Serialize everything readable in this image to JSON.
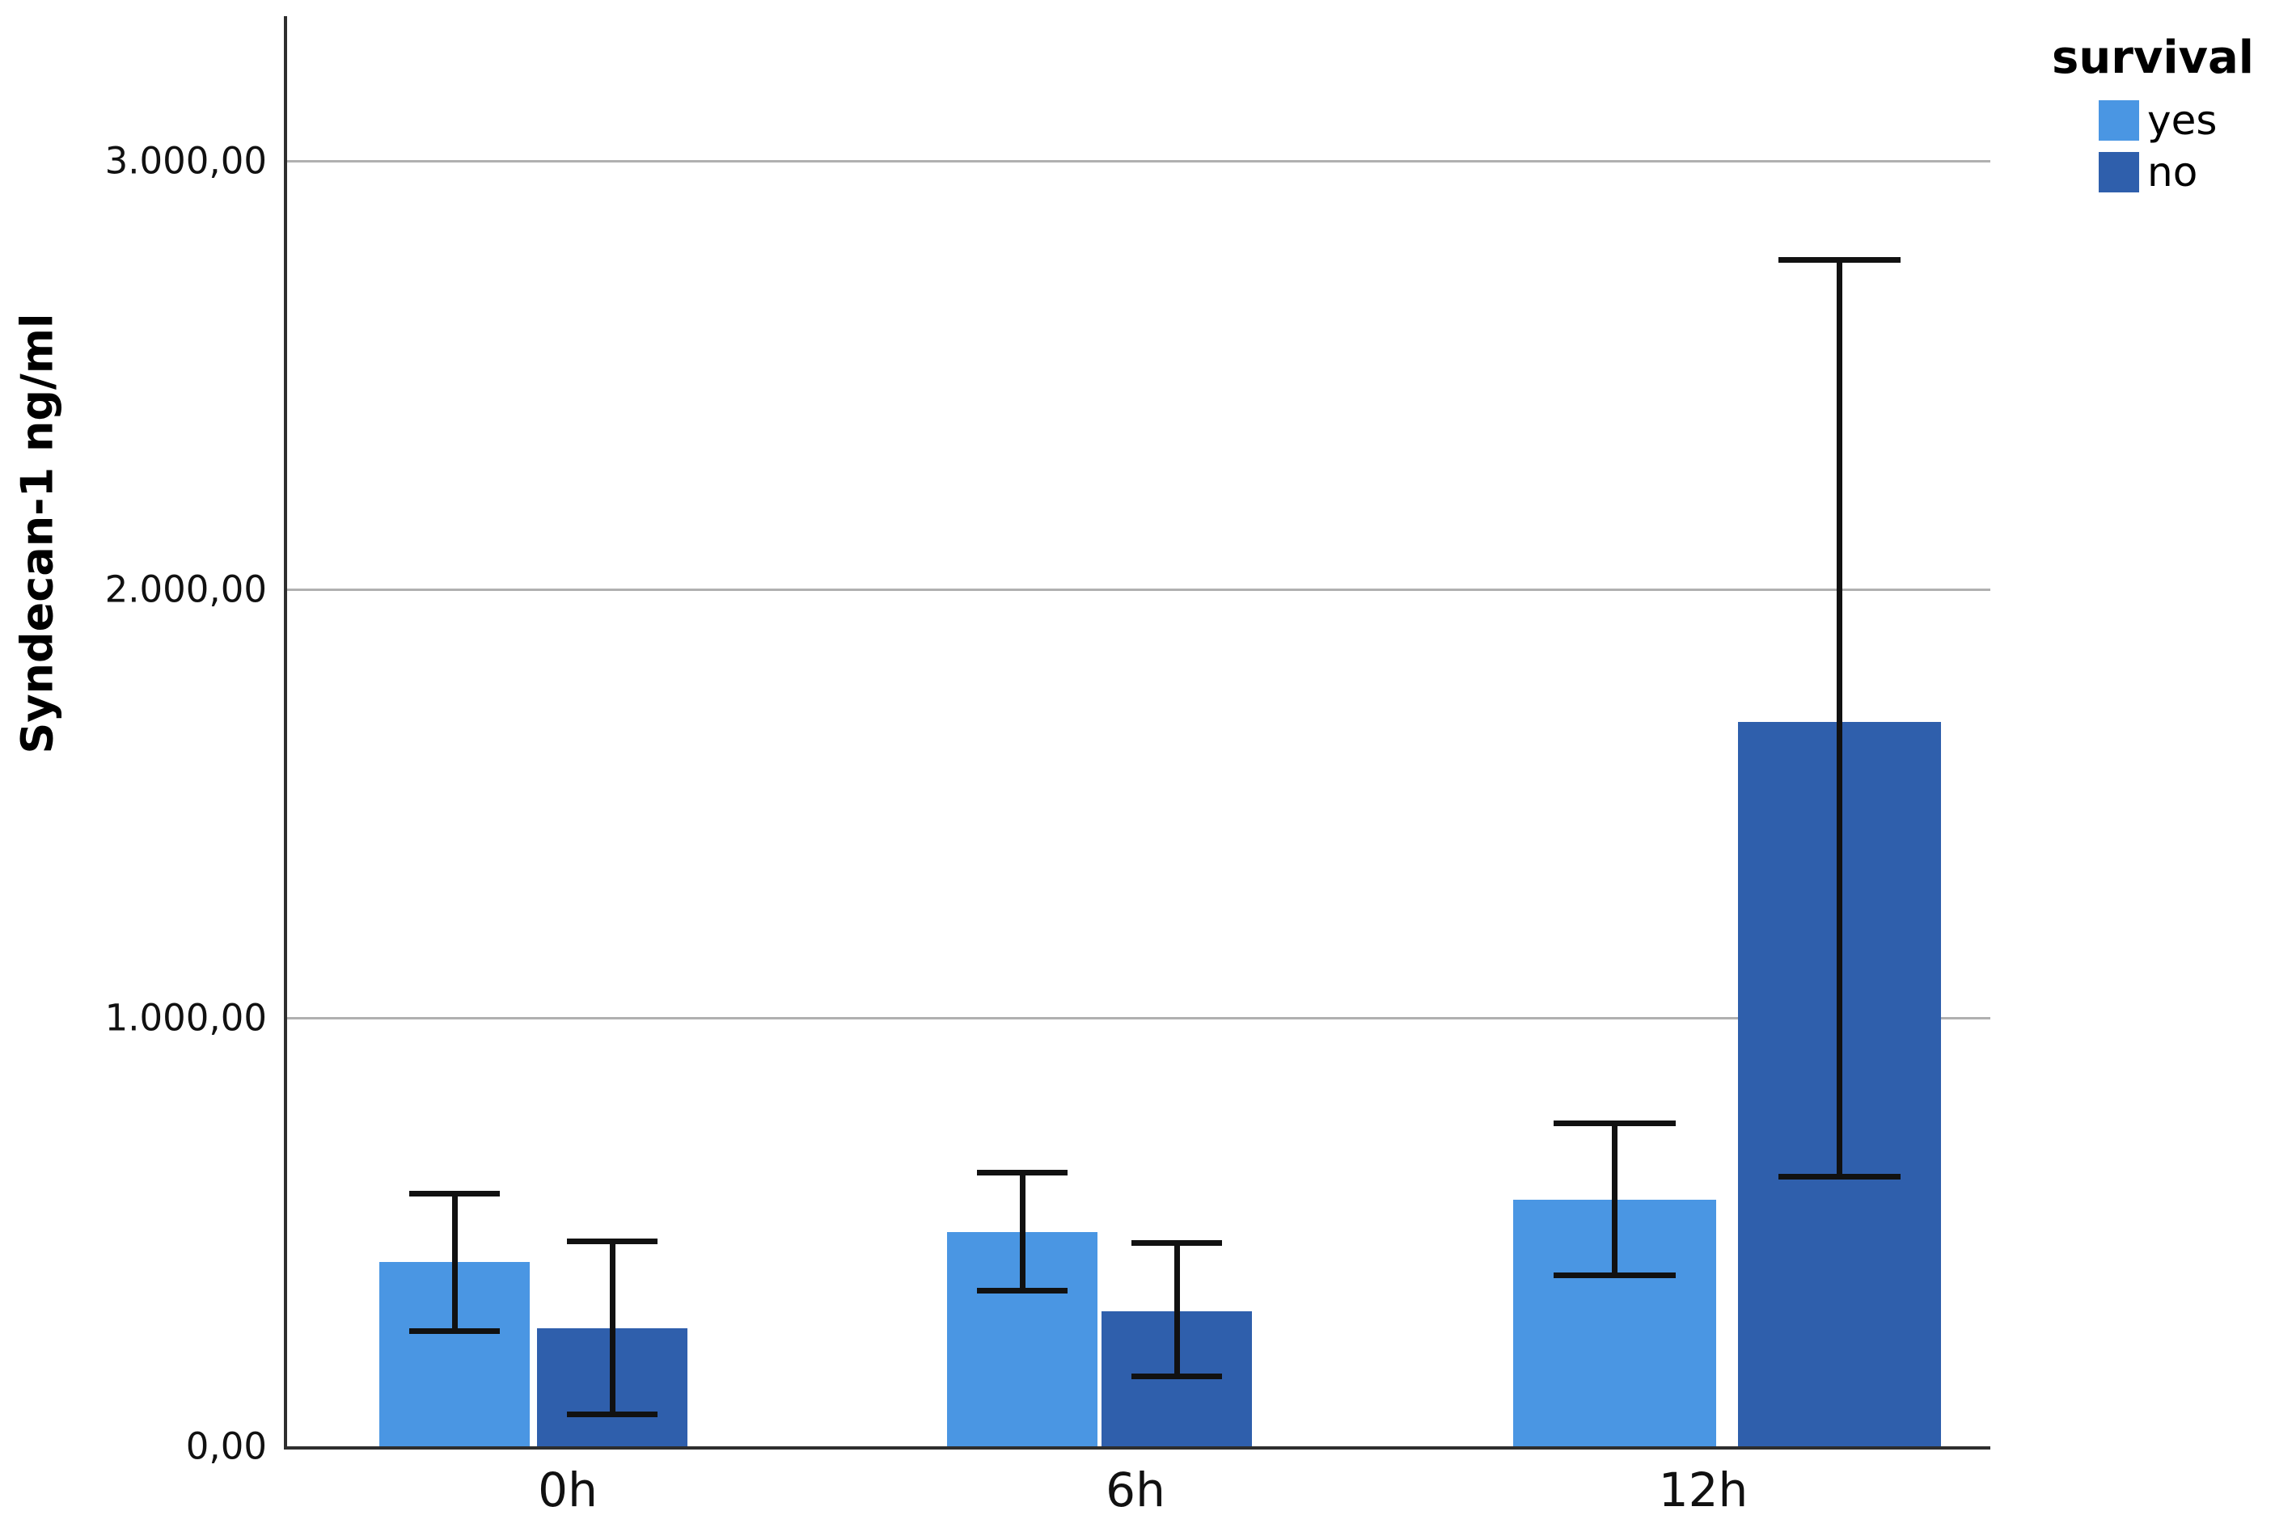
{
  "y_axis": {
    "title": "Syndecan-1 ng/ml",
    "tick_labels": [
      "0,00",
      "1.000,00",
      "2.000,00",
      "3.000,00"
    ],
    "tick_values": [
      0,
      1000,
      2000,
      3000
    ]
  },
  "x_axis": {
    "categories": [
      "0h",
      "6h",
      "12h"
    ]
  },
  "legend": {
    "title": "survival",
    "items": [
      {
        "label": "yes",
        "color": "#4A96E3"
      },
      {
        "label": "no",
        "color": "#2F5FAC"
      }
    ]
  },
  "chart_data": {
    "type": "bar",
    "title": "",
    "xlabel": "",
    "ylabel": "Syndecan-1 ng/ml",
    "categories": [
      "0h",
      "6h",
      "12h"
    ],
    "series": [
      {
        "name": "yes",
        "color": "#4A96E3",
        "values": [
          430,
          500,
          575
        ],
        "error_low": [
          270,
          365,
          400
        ],
        "error_high": [
          590,
          640,
          755
        ]
      },
      {
        "name": "no",
        "color": "#2F5FAC",
        "values": [
          275,
          315,
          1690
        ],
        "error_low": [
          75,
          165,
          630
        ],
        "error_high": [
          480,
          475,
          2770
        ]
      }
    ],
    "ylim": [
      0,
      3340
    ],
    "grid": true,
    "error_bars": true,
    "legend_position": "top-right",
    "number_format": "european-decimal-comma"
  }
}
